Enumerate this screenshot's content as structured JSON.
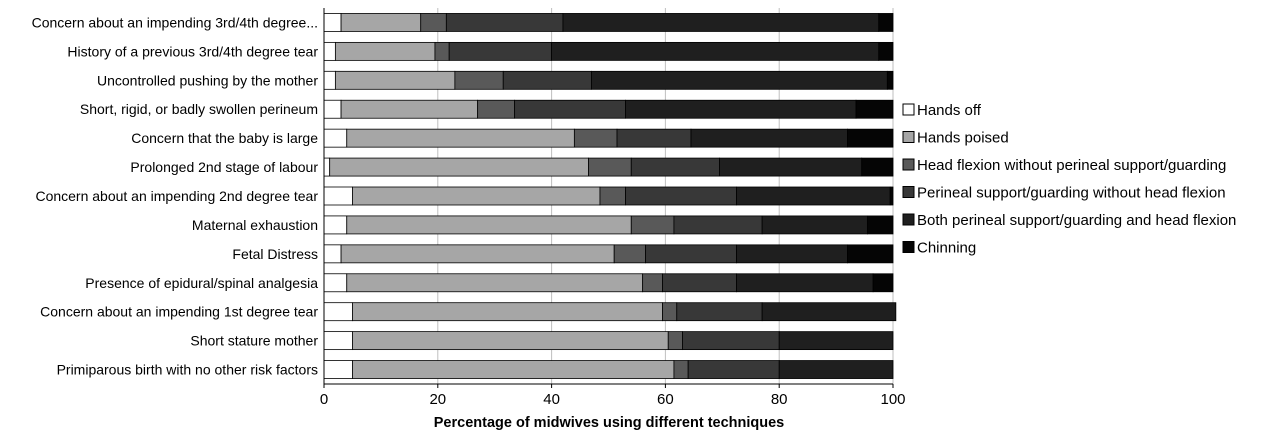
{
  "chart_data": {
    "type": "bar",
    "orientation": "horizontal",
    "stacked": true,
    "xlabel": "Percentage of midwives using different techniques",
    "xlim": [
      0,
      100
    ],
    "xticks": [
      "0",
      "20",
      "40",
      "60",
      "80",
      "100"
    ],
    "grid": "vertical",
    "legend_position": "right",
    "categories": [
      "Concern about an impending 3rd/4th degree...",
      "History of a previous 3rd/4th degree tear",
      "Uncontrolled pushing by the mother",
      "Short, rigid, or badly swollen perineum",
      "Concern that the baby is large",
      "Prolonged 2nd stage of labour",
      "Concern about an impending 2nd degree tear",
      "Maternal exhaustion",
      "Fetal Distress",
      "Presence of epidural/spinal analgesia",
      "Concern about an impending 1st degree tear",
      "Short stature mother",
      "Primiparous birth with no other risk factors"
    ],
    "series": [
      {
        "name": "Hands off",
        "color": "#ffffff",
        "values": [
          3,
          2,
          2,
          3,
          4,
          1,
          5,
          4,
          3,
          4,
          5,
          5,
          5
        ]
      },
      {
        "name": "Hands poised",
        "color": "#a6a6a6",
        "values": [
          14,
          17.5,
          21,
          24,
          40,
          45.5,
          43.5,
          50,
          48,
          52,
          54.5,
          55.5,
          56.5
        ]
      },
      {
        "name": "Head flexion without perineal support/guarding",
        "color": "#595959",
        "values": [
          4.5,
          2.5,
          8.5,
          6.5,
          7.5,
          7.5,
          4.5,
          7.5,
          5.5,
          3.5,
          2.5,
          2.5,
          2.5
        ]
      },
      {
        "name": "Perineal support/guarding without head flexion",
        "color": "#383838",
        "values": [
          20.5,
          18,
          15.5,
          19.5,
          13,
          15.5,
          19.5,
          15.5,
          16,
          13,
          15,
          17,
          16
        ]
      },
      {
        "name": "Both perineal support/guarding and head flexion",
        "color": "#1f1f1f",
        "values": [
          55.5,
          57.5,
          52,
          40.5,
          27.5,
          25,
          27,
          18.5,
          19.5,
          24,
          23.5,
          20,
          20
        ]
      },
      {
        "name": "Chinning",
        "color": "#050505",
        "values": [
          2.5,
          2.5,
          1,
          6.5,
          8,
          5.5,
          0.5,
          4.5,
          8,
          3.5,
          0,
          0,
          0
        ]
      }
    ]
  }
}
